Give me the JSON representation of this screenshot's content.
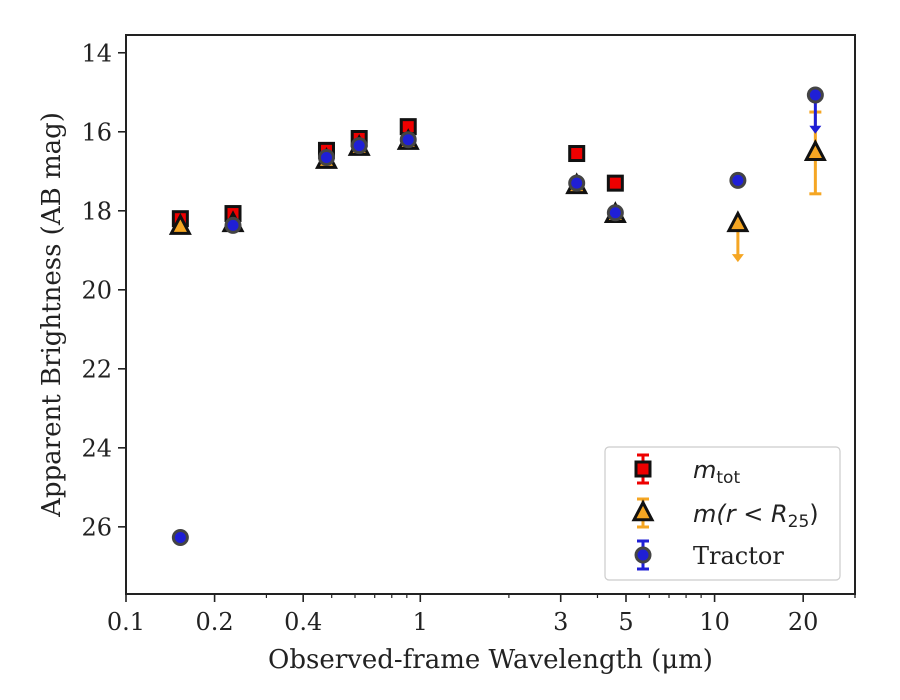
{
  "chart_data": {
    "type": "scatter",
    "xlabel": "Observed-frame Wavelength (μm)",
    "ylabel": "Apparent Brightness (AB mag)",
    "xscale": "log",
    "xlim": [
      0.1,
      30
    ],
    "ylim": [
      27.7,
      13.55
    ],
    "y_inverted": true,
    "x_ticks": [
      0.1,
      0.2,
      0.4,
      1,
      3,
      5,
      10,
      20
    ],
    "x_tick_labels": [
      "0.1",
      "0.2",
      "0.4",
      "1",
      "3",
      "5",
      "10",
      "20"
    ],
    "y_ticks": [
      14,
      16,
      18,
      20,
      22,
      24,
      26
    ],
    "y_tick_labels": [
      "14",
      "16",
      "18",
      "20",
      "22",
      "24",
      "26"
    ],
    "grid": false,
    "legend_position": "bottom-right",
    "legend": [
      {
        "label": "m",
        "sub": "tot",
        "marker": "square",
        "color": "#ee0000"
      },
      {
        "label": "m(r < R",
        "sub": "25",
        "label_end": ")",
        "marker": "triangle",
        "color": "#f5a623"
      },
      {
        "label": "Tractor",
        "marker": "circle",
        "color": "#1f1fd6"
      }
    ],
    "series": [
      {
        "name": "m_tot",
        "marker": "square",
        "color": "#ee0000",
        "points": [
          {
            "x": 0.153,
            "y": 18.2
          },
          {
            "x": 0.231,
            "y": 18.07
          },
          {
            "x": 0.48,
            "y": 16.47
          },
          {
            "x": 0.62,
            "y": 16.17
          },
          {
            "x": 0.91,
            "y": 15.87
          },
          {
            "x": 3.4,
            "y": 16.55
          },
          {
            "x": 4.6,
            "y": 17.3
          }
        ]
      },
      {
        "name": "m(r<R25)",
        "marker": "triangle",
        "color": "#f5a623",
        "points": [
          {
            "x": 0.153,
            "y": 18.4
          },
          {
            "x": 0.231,
            "y": 18.33
          },
          {
            "x": 0.48,
            "y": 16.73
          },
          {
            "x": 0.62,
            "y": 16.4
          },
          {
            "x": 0.91,
            "y": 16.25
          },
          {
            "x": 3.4,
            "y": 17.37
          },
          {
            "x": 4.6,
            "y": 18.1
          },
          {
            "x": 12.0,
            "y": 18.33,
            "upper_limit_to": 19.3
          },
          {
            "x": 22.0,
            "y": 16.53,
            "err_low": 15.5,
            "err_high": 17.57
          }
        ]
      },
      {
        "name": "Tractor",
        "marker": "circle",
        "color": "#1f1fd6",
        "points": [
          {
            "x": 0.153,
            "y": 26.27
          },
          {
            "x": 0.231,
            "y": 18.37
          },
          {
            "x": 0.48,
            "y": 16.65
          },
          {
            "x": 0.62,
            "y": 16.35
          },
          {
            "x": 0.91,
            "y": 16.2
          },
          {
            "x": 3.4,
            "y": 17.3
          },
          {
            "x": 4.6,
            "y": 18.05
          },
          {
            "x": 12.0,
            "y": 17.23
          },
          {
            "x": 22.0,
            "y": 15.07,
            "upper_limit_to": 16.05
          }
        ]
      }
    ]
  }
}
